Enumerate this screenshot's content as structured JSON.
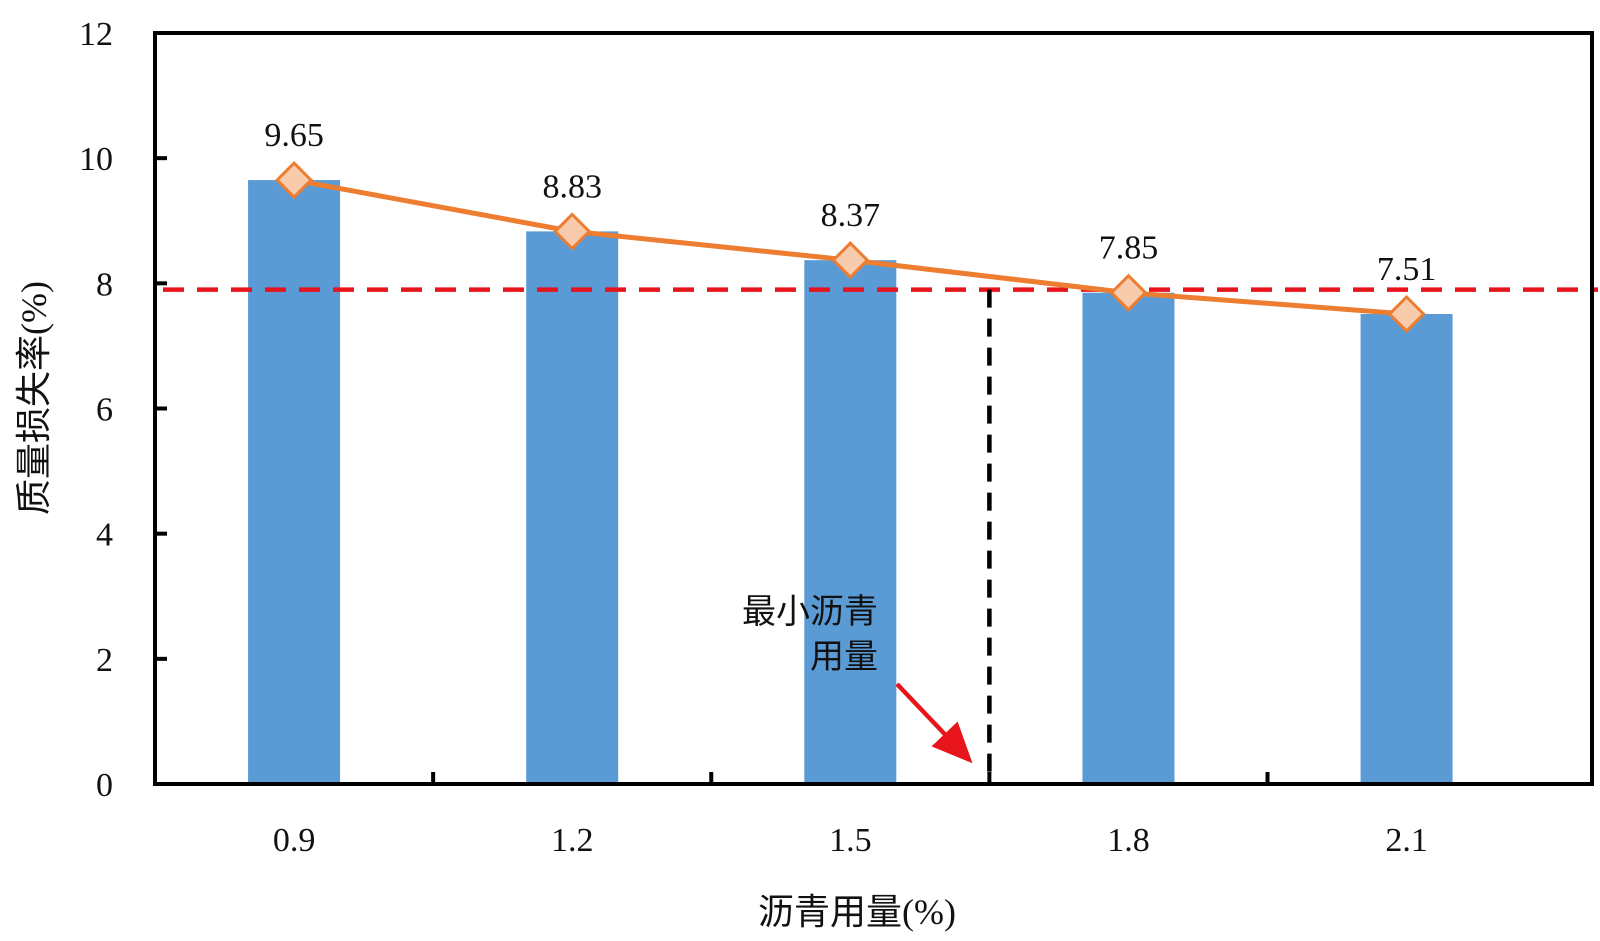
{
  "chart_data": {
    "type": "bar",
    "categories": [
      "0.9",
      "1.2",
      "1.5",
      "1.8",
      "2.1"
    ],
    "values": [
      9.65,
      8.83,
      8.37,
      7.85,
      7.51
    ],
    "data_labels": [
      "9.65",
      "8.83",
      "8.37",
      "7.85",
      "7.51"
    ],
    "xlabel": "沥青用量(%)",
    "ylabel": "质量损失率(%)",
    "ylim": [
      0,
      12
    ],
    "yticks": [
      "0",
      "2",
      "4",
      "6",
      "8",
      "10",
      "12"
    ],
    "ytick_values": [
      0,
      2,
      4,
      6,
      8,
      10,
      12
    ],
    "trend_line": {
      "type": "line",
      "values": [
        9.65,
        8.83,
        8.37,
        7.85,
        7.51
      ],
      "marker": "diamond"
    },
    "threshold_y": 7.9,
    "min_asphalt_x": 1.65,
    "annotation": {
      "line1": "最小沥青",
      "line2": "用量",
      "points_to_x": 1.65
    },
    "grid": false,
    "legend": "none",
    "colors": {
      "bar": "#5b9bd5",
      "line": "#ed7d31",
      "marker_fill": "#f8cbad",
      "threshold": "#e8141b",
      "min_line": "#000000",
      "arrow": "#e8141b",
      "axis": "#000000"
    }
  }
}
